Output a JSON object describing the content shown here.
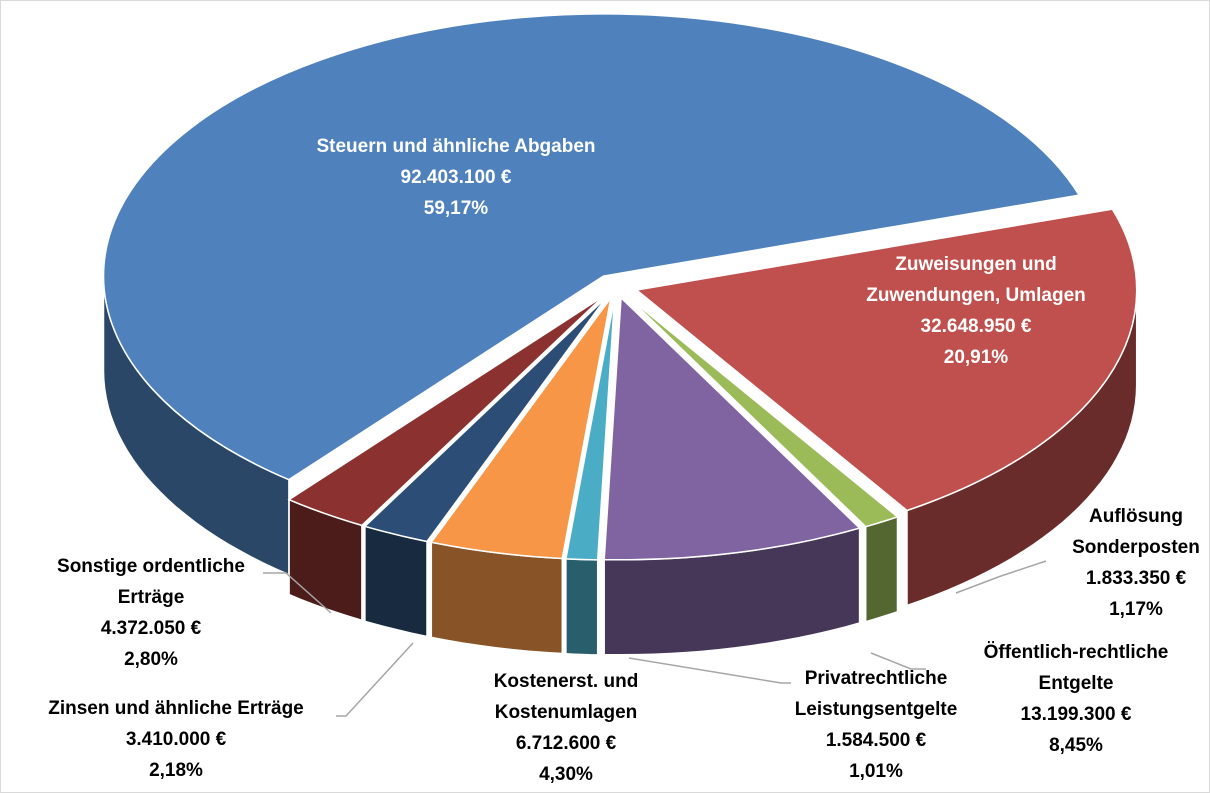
{
  "chart_data": {
    "type": "pie",
    "categories": [
      "Steuern und ähnliche Abgaben",
      "Zuweisungen und Zuwendungen, Umlagen",
      "Auflösung Sonderposten",
      "Öffentlich-rechtliche Entgelte",
      "Privatrechtliche Leistungsentgelte",
      "Kostenerst. und Kostenumlagen",
      "Zinsen und ähnliche Erträge",
      "Sonstige ordentliche Erträge"
    ],
    "values": [
      92403100,
      32648950,
      1833350,
      13199300,
      1584500,
      6712600,
      3410000,
      4372050
    ],
    "value_labels": [
      "92.403.100 €",
      "32.648.950 €",
      "1.833.350 €",
      "13.199.300 €",
      "1.584.500 €",
      "6.712.600 €",
      "3.410.000 €",
      "4.372.050 €"
    ],
    "percentages": [
      59.17,
      20.91,
      1.17,
      8.45,
      1.01,
      4.3,
      2.18,
      2.8
    ],
    "percentage_labels": [
      "59,17%",
      "20,91%",
      "1,17%",
      "8,45%",
      "1,01%",
      "4,30%",
      "2,18%",
      "2,80%"
    ],
    "colors": [
      "#4f81bd",
      "#c0504d",
      "#9bbb59",
      "#8064a2",
      "#4bacc6",
      "#f79646",
      "#2c4d75",
      "#8b3230"
    ]
  }
}
